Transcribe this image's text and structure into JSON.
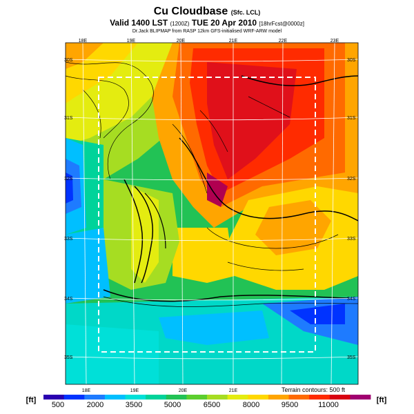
{
  "header": {
    "title": "Cu Cloudbase",
    "title_suffix": "(Sfc. LCL)",
    "valid_line": "Valid 1400 LST",
    "valid_paren": "(1200Z)",
    "valid_date": "TUE 20 Apr 2010",
    "forecast_tag": "[18hrFcst@0000z]",
    "credit": "Dr.Jack BLIPMAP from RASP 12km GFS-initialised WRF-ARW model"
  },
  "map": {
    "lon_labels_top": [
      "18E",
      "19E",
      "20E",
      "21E",
      "22E",
      "23E"
    ],
    "lon_labels_bottom": [
      "18E",
      "19E",
      "20E",
      "21E"
    ],
    "lat_labels_left": [
      "30S",
      "31S",
      "32S",
      "33S",
      "34S",
      "35S"
    ],
    "lat_labels_right": [
      "30S",
      "31S",
      "32S",
      "33S",
      "34S",
      "35S"
    ],
    "terrain_note": "Terrain contours: 500 ft"
  },
  "colorbar": {
    "unit_left": "[ft]",
    "unit_right": "[ft]",
    "tick_labels": [
      "500",
      "2000",
      "3500",
      "5000",
      "6500",
      "8000",
      "9500",
      "11000"
    ],
    "colors": [
      "#2a00b0",
      "#0033ff",
      "#1e7bff",
      "#00bfff",
      "#00e0d8",
      "#00d39a",
      "#22c255",
      "#5cce2e",
      "#a6dd22",
      "#e4ec10",
      "#ffd800",
      "#ffa500",
      "#ff6a00",
      "#ff2b00",
      "#d80010",
      "#a00070"
    ]
  }
}
